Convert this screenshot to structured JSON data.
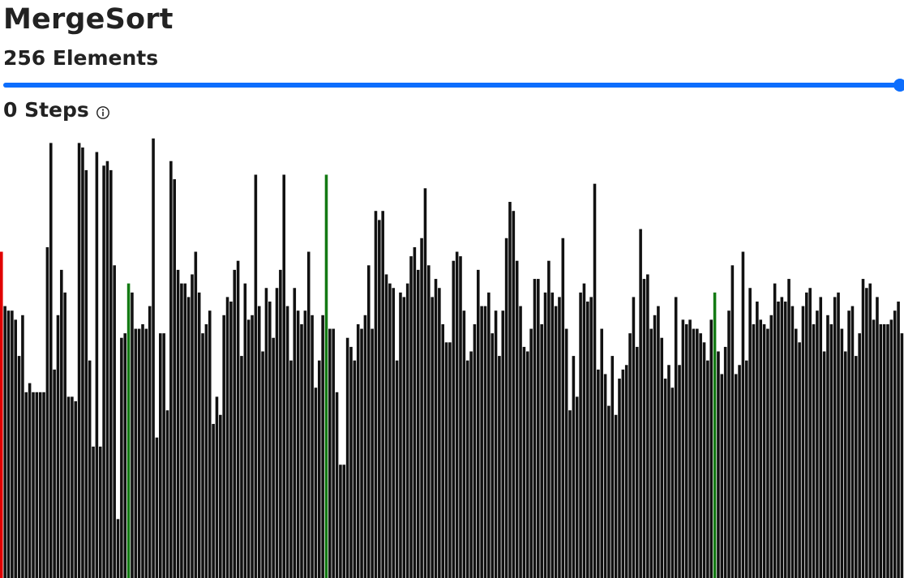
{
  "header": {
    "title": "MergeSort",
    "elements_label": "256 Elements",
    "steps_label": "0 Steps"
  },
  "slider": {
    "min": 0,
    "max": 256,
    "value": 256,
    "fraction": 1.0
  },
  "icons": {
    "info": "info-circle-icon"
  },
  "colors": {
    "accent": "#0d6efd",
    "bar": "#111111",
    "bar_highlight_red": "#e10000",
    "bar_highlight_green": "#137a13"
  },
  "chart_data": {
    "type": "bar",
    "count": 256,
    "values": [
      72,
      60,
      59,
      59,
      57,
      49,
      58,
      41,
      43,
      41,
      41,
      41,
      41,
      73,
      96,
      46,
      58,
      68,
      63,
      40,
      40,
      39,
      96,
      95,
      90,
      48,
      29,
      94,
      29,
      91,
      92,
      90,
      69,
      13,
      53,
      54,
      65,
      63,
      55,
      55,
      56,
      55,
      60,
      97,
      31,
      54,
      54,
      37,
      92,
      88,
      68,
      65,
      65,
      62,
      67,
      72,
      63,
      54,
      56,
      59,
      34,
      40,
      36,
      58,
      62,
      61,
      68,
      70,
      49,
      65,
      57,
      58,
      89,
      60,
      50,
      64,
      61,
      53,
      64,
      68,
      89,
      60,
      48,
      64,
      59,
      56,
      59,
      72,
      58,
      42,
      48,
      58,
      89,
      55,
      55,
      41,
      25,
      25,
      53,
      51,
      48,
      56,
      55,
      58,
      69,
      55,
      81,
      79,
      81,
      67,
      65,
      64,
      48,
      63,
      62,
      65,
      71,
      73,
      68,
      75,
      86,
      69,
      62,
      66,
      64,
      56,
      52,
      52,
      70,
      72,
      71,
      59,
      48,
      50,
      56,
      68,
      60,
      60,
      63,
      54,
      59,
      49,
      59,
      75,
      83,
      81,
      70,
      60,
      51,
      50,
      55,
      66,
      66,
      56,
      63,
      70,
      63,
      60,
      62,
      75,
      55,
      37,
      49,
      40,
      63,
      65,
      61,
      62,
      87,
      46,
      55,
      45,
      38,
      49,
      36,
      44,
      46,
      47,
      54,
      62,
      51,
      77,
      66,
      67,
      55,
      58,
      60,
      53,
      44,
      47,
      42,
      62,
      47,
      57,
      56,
      57,
      55,
      55,
      54,
      52,
      48,
      57,
      63,
      50,
      45,
      51,
      59,
      69,
      45,
      47,
      72,
      48,
      64,
      56,
      61,
      57,
      56,
      55,
      58,
      65,
      61,
      62,
      61,
      66,
      60,
      55,
      52,
      60,
      63,
      64,
      56,
      59,
      62,
      50,
      58,
      56,
      62,
      63,
      55,
      50,
      59,
      60,
      49,
      54,
      66,
      64,
      65,
      57,
      62,
      56,
      56,
      56,
      57,
      59,
      61,
      54
    ],
    "highlighted": [
      {
        "index": 0,
        "color": "red"
      },
      {
        "index": 36,
        "color": "green"
      },
      {
        "index": 92,
        "color": "green"
      },
      {
        "index": 202,
        "color": "green"
      }
    ]
  }
}
